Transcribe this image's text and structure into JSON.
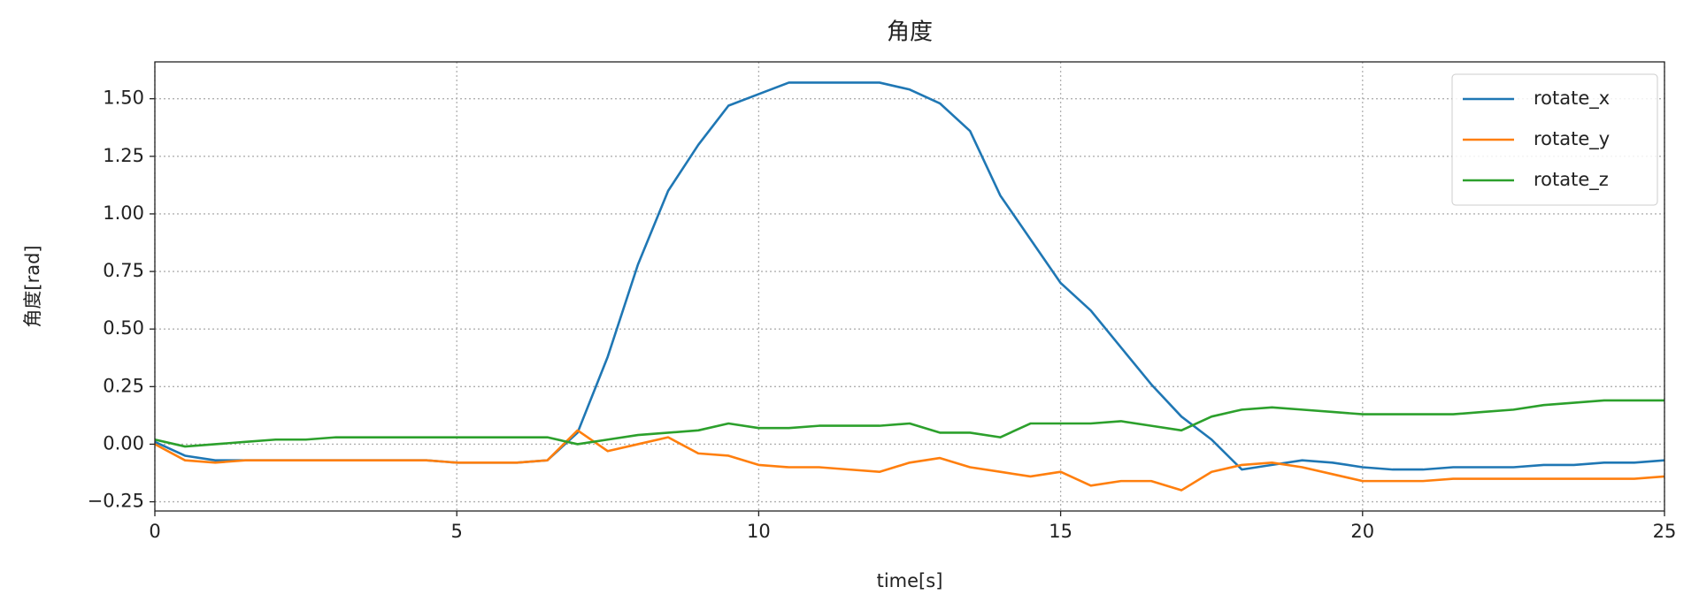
{
  "chart_data": {
    "type": "line",
    "title": "角度",
    "xlabel": "time[s]",
    "ylabel": "角度[rad]",
    "x": [
      0,
      0.5,
      1,
      1.5,
      2,
      2.5,
      3,
      3.5,
      4,
      4.5,
      5,
      5.5,
      6,
      6.5,
      7,
      7.5,
      8,
      8.5,
      9,
      9.5,
      10,
      10.5,
      11,
      11.5,
      12,
      12.5,
      13,
      13.5,
      14,
      14.5,
      15,
      15.5,
      16,
      16.5,
      17,
      17.5,
      18,
      18.5,
      19,
      19.5,
      20,
      20.5,
      21,
      21.5,
      22,
      22.5,
      23,
      23.5,
      24,
      24.5,
      25
    ],
    "series": [
      {
        "name": "rotate_x",
        "color": "#1f77b4",
        "values": [
          0.01,
          -0.05,
          -0.07,
          -0.07,
          -0.07,
          -0.07,
          -0.07,
          -0.07,
          -0.07,
          -0.07,
          -0.08,
          -0.08,
          -0.08,
          -0.07,
          0.05,
          0.38,
          0.78,
          1.1,
          1.3,
          1.47,
          1.52,
          1.57,
          1.57,
          1.57,
          1.57,
          1.54,
          1.48,
          1.36,
          1.08,
          0.89,
          0.7,
          0.58,
          0.42,
          0.26,
          0.12,
          0.02,
          -0.11,
          -0.09,
          -0.07,
          -0.08,
          -0.1,
          -0.11,
          -0.11,
          -0.1,
          -0.1,
          -0.1,
          -0.09,
          -0.09,
          -0.08,
          -0.08,
          -0.07
        ]
      },
      {
        "name": "rotate_y",
        "color": "#ff7f0e",
        "values": [
          0,
          -0.07,
          -0.08,
          -0.07,
          -0.07,
          -0.07,
          -0.07,
          -0.07,
          -0.07,
          -0.07,
          -0.08,
          -0.08,
          -0.08,
          -0.07,
          0.06,
          -0.03,
          0.0,
          0.03,
          -0.04,
          -0.05,
          -0.09,
          -0.1,
          -0.1,
          -0.11,
          -0.12,
          -0.08,
          -0.06,
          -0.1,
          -0.12,
          -0.14,
          -0.12,
          -0.18,
          -0.16,
          -0.16,
          -0.2,
          -0.12,
          -0.09,
          -0.08,
          -0.1,
          -0.13,
          -0.16,
          -0.16,
          -0.16,
          -0.15,
          -0.15,
          -0.15,
          -0.15,
          -0.15,
          -0.15,
          -0.15,
          -0.14
        ]
      },
      {
        "name": "rotate_z",
        "color": "#2ca02c",
        "values": [
          0.02,
          -0.01,
          0.0,
          0.01,
          0.02,
          0.02,
          0.03,
          0.03,
          0.03,
          0.03,
          0.03,
          0.03,
          0.03,
          0.03,
          0.0,
          0.02,
          0.04,
          0.05,
          0.06,
          0.09,
          0.07,
          0.07,
          0.08,
          0.08,
          0.08,
          0.09,
          0.05,
          0.05,
          0.03,
          0.09,
          0.09,
          0.09,
          0.1,
          0.08,
          0.06,
          0.12,
          0.15,
          0.16,
          0.15,
          0.14,
          0.13,
          0.13,
          0.13,
          0.13,
          0.14,
          0.15,
          0.17,
          0.18,
          0.19,
          0.19,
          0.19
        ]
      }
    ],
    "xlim": [
      0,
      25
    ],
    "xticks": [
      0,
      5,
      10,
      15,
      20,
      25
    ],
    "ylim": [
      -0.29,
      1.66
    ],
    "yticks": [
      {
        "value": 1.5,
        "label": "1.50"
      },
      1.25,
      {
        "value": 1,
        "label": "1.00"
      },
      0.75,
      {
        "value": 0.5,
        "label": "0.50"
      },
      0.25,
      {
        "value": 0,
        "label": "0.00"
      },
      {
        "value": -0.25,
        "label": "−0.25"
      }
    ],
    "grid": true,
    "legend": "upper right"
  }
}
